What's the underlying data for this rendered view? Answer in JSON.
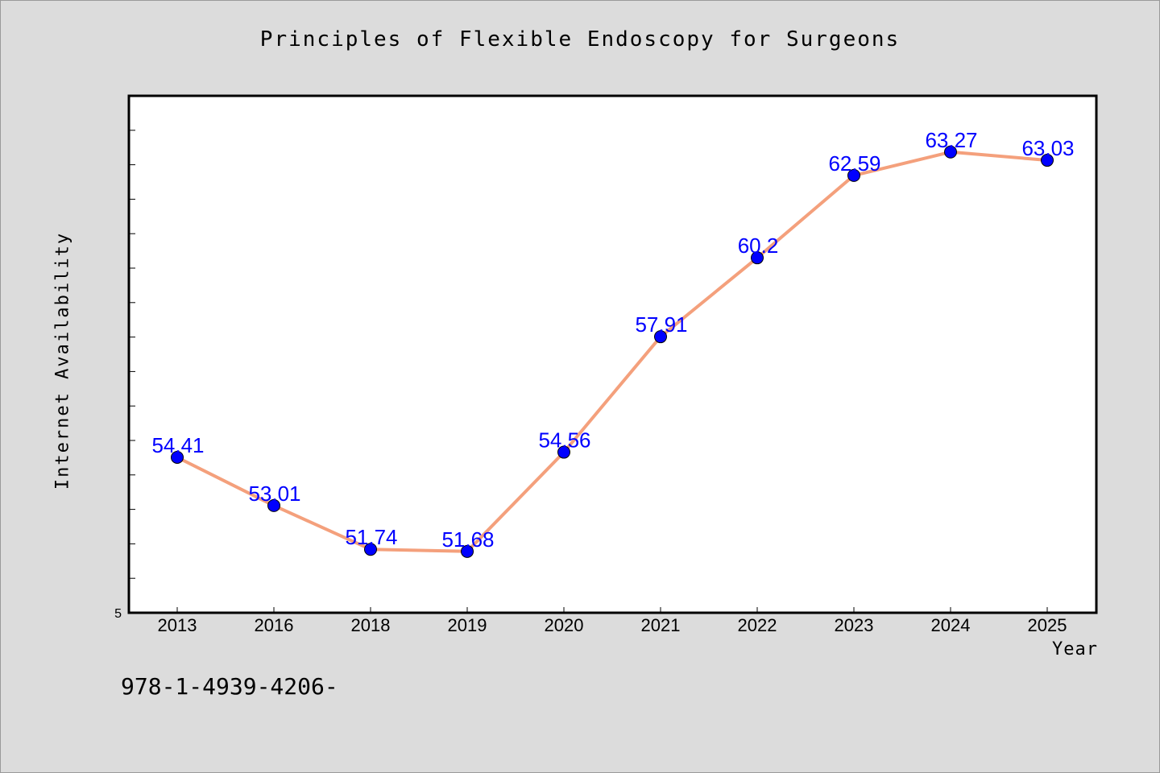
{
  "page": {
    "isbn_text": "978-1-4939-4206-"
  },
  "chart_data": {
    "type": "line",
    "title": "Principles of Flexible Endoscopy for Surgeons",
    "xlabel": "Year",
    "ylabel": "Internet Availability",
    "categories": [
      "2013",
      "2016",
      "2018",
      "2019",
      "2020",
      "2021",
      "2022",
      "2023",
      "2024",
      "2025"
    ],
    "values": [
      54.41,
      53.01,
      51.74,
      51.68,
      54.56,
      57.91,
      60.2,
      62.59,
      63.27,
      63.03
    ],
    "data_labels": [
      "54.41",
      "53.01",
      "51.74",
      "51.68",
      "54.56",
      "57.91",
      "60.2",
      "62.59",
      "63.27",
      "63.03"
    ],
    "y_min_label": "5",
    "ylim": [
      49.9,
      64.9
    ],
    "grid": false,
    "legend": "none",
    "line_color": "#f4a07c",
    "marker_color": "#0000ff",
    "label_color": "#0000ff",
    "plot_bg": "#ffffff"
  }
}
